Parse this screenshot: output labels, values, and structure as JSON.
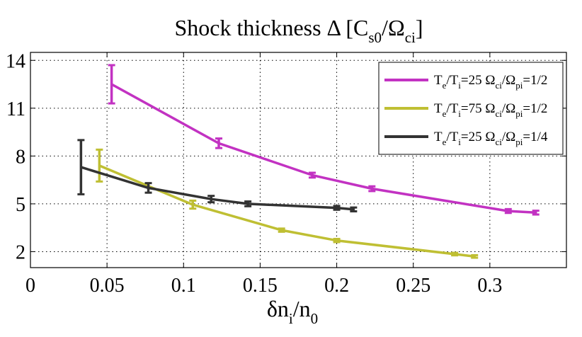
{
  "chart_data": {
    "type": "line",
    "title": "Shock thickness Δ [C",
    "title_sub1": "s0",
    "title_mid": "/Ω",
    "title_sub2": "ci",
    "title_end": "]",
    "xlabel_main": "δn",
    "xlabel_sub1": "i",
    "xlabel_mid": "/n",
    "xlabel_sub2": "0",
    "xlim": [
      0,
      0.35
    ],
    "ylim": [
      1,
      14.5
    ],
    "xticks": [
      0,
      0.05,
      0.1,
      0.15,
      0.2,
      0.25,
      0.3
    ],
    "xtick_labels": [
      "0",
      "0.05",
      "0.1",
      "0.15",
      "0.2",
      "0.25",
      "0.3"
    ],
    "yticks": [
      2,
      5,
      8,
      11,
      14
    ],
    "ytick_labels": [
      "2",
      "5",
      "8",
      "11",
      "14"
    ],
    "grid": true,
    "legend_position": "top-right",
    "series": [
      {
        "name": "Te/Ti=25 Ωci/Ωpi=1/2",
        "color": "#c232c2",
        "x": [
          0.053,
          0.123,
          0.184,
          0.223,
          0.312,
          0.33
        ],
        "y": [
          12.5,
          8.8,
          6.8,
          5.95,
          4.55,
          4.45
        ],
        "err": [
          1.2,
          0.3,
          0.15,
          0.15,
          0.12,
          0.12
        ]
      },
      {
        "name": "Te/Ti=75 Ωci/Ωpi=1/2",
        "color": "#bfbf33",
        "x": [
          0.045,
          0.106,
          0.164,
          0.2,
          0.277,
          0.29
        ],
        "y": [
          7.4,
          4.95,
          3.35,
          2.7,
          1.85,
          1.7
        ],
        "err": [
          1.0,
          0.25,
          0.1,
          0.1,
          0.08,
          0.08
        ]
      },
      {
        "name": "Te/Ti=25 Ωci/Ωpi=1/4",
        "color": "#333333",
        "x": [
          0.033,
          0.077,
          0.118,
          0.142,
          0.2,
          0.211
        ],
        "y": [
          7.3,
          6.0,
          5.3,
          5.0,
          4.75,
          4.65
        ],
        "err": [
          1.7,
          0.3,
          0.2,
          0.15,
          0.12,
          0.12
        ]
      }
    ],
    "legend": [
      {
        "a": "T",
        "a_sub": "e",
        "b": "/T",
        "b_sub": "i",
        "c": "=25 Ω",
        "c_sub": "ci",
        "d": "/Ω",
        "d_sub": "pi",
        "e": "=1/2"
      },
      {
        "a": "T",
        "a_sub": "e",
        "b": "/T",
        "b_sub": "i",
        "c": "=75 Ω",
        "c_sub": "ci",
        "d": "/Ω",
        "d_sub": "pi",
        "e": "=1/2"
      },
      {
        "a": "T",
        "a_sub": "e",
        "b": "/T",
        "b_sub": "i",
        "c": "=25 Ω",
        "c_sub": "ci",
        "d": "/Ω",
        "d_sub": "pi",
        "e": "=1/4"
      }
    ]
  }
}
